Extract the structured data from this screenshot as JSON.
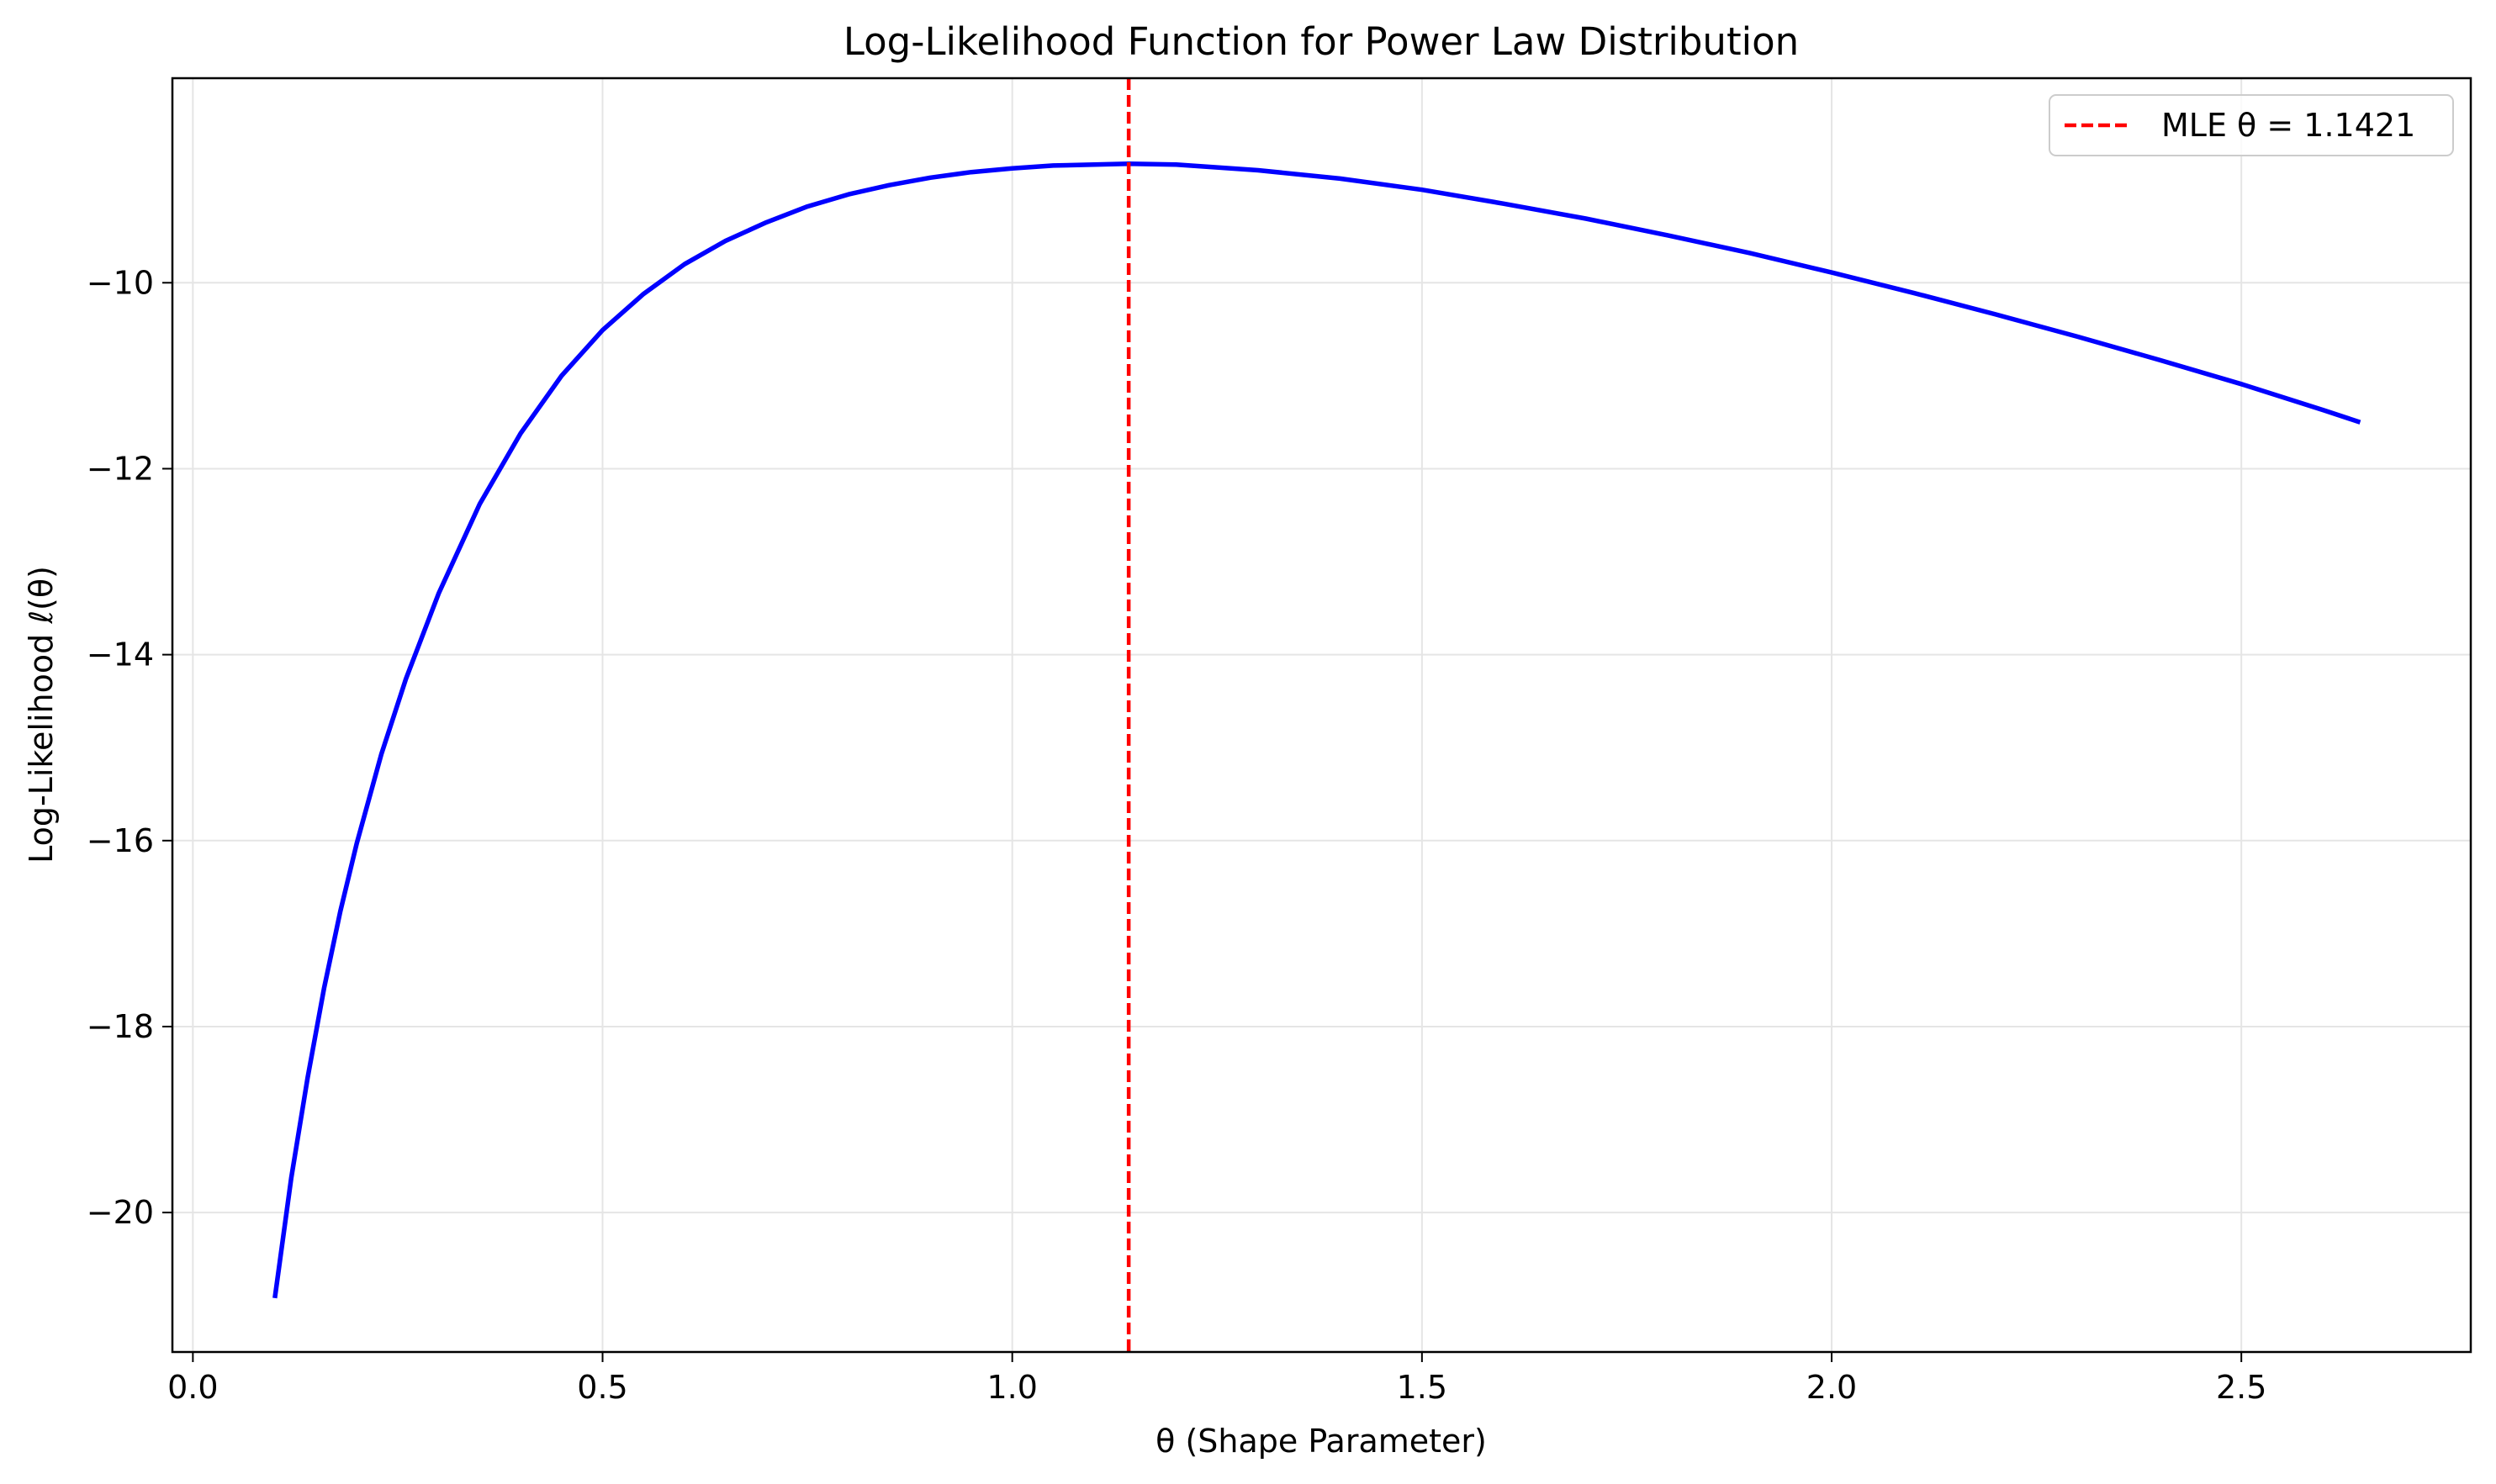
{
  "chart_data": {
    "type": "line",
    "title": "Log-Likelihood Function for Power Law Distribution",
    "xlabel": "θ (Shape Parameter)",
    "ylabel": "Log-Likelihood ℓ(θ)",
    "xlim": [
      -0.025,
      2.78
    ],
    "ylim": [
      -21.5,
      -7.8
    ],
    "xticks": [
      0.0,
      0.5,
      1.0,
      1.5,
      2.0,
      2.5
    ],
    "xtick_labels": [
      "0.0",
      "0.5",
      "1.0",
      "1.5",
      "2.0",
      "2.5"
    ],
    "yticks": [
      -20,
      -18,
      -16,
      -14,
      -12,
      -10
    ],
    "ytick_labels": [
      "−20",
      "−18",
      "−16",
      "−14",
      "−12",
      "−10"
    ],
    "grid": true,
    "legend_position": "top-right",
    "series": [
      {
        "name": "",
        "color": "#0000ff",
        "style": "solid",
        "x": [
          0.1,
          0.12,
          0.14,
          0.16,
          0.18,
          0.2,
          0.23,
          0.26,
          0.3,
          0.35,
          0.4,
          0.45,
          0.5,
          0.55,
          0.6,
          0.65,
          0.7,
          0.75,
          0.8,
          0.85,
          0.9,
          0.95,
          1.0,
          1.05,
          1.1,
          1.1421,
          1.2,
          1.3,
          1.4,
          1.5,
          1.6,
          1.7,
          1.8,
          1.9,
          2.0,
          2.1,
          2.2,
          2.3,
          2.4,
          2.5,
          2.6,
          2.645
        ],
        "y": [
          -20.92,
          -19.63,
          -18.55,
          -17.59,
          -16.76,
          -16.03,
          -15.07,
          -14.26,
          -13.34,
          -12.38,
          -11.62,
          -11.0,
          -10.51,
          -10.12,
          -9.8,
          -9.55,
          -9.35,
          -9.18,
          -9.05,
          -8.95,
          -8.87,
          -8.81,
          -8.77,
          -8.74,
          -8.73,
          -8.72,
          -8.73,
          -8.79,
          -8.88,
          -9.0,
          -9.15,
          -9.31,
          -9.49,
          -9.68,
          -9.89,
          -10.11,
          -10.34,
          -10.58,
          -10.83,
          -11.09,
          -11.37,
          -11.5
        ]
      }
    ],
    "vlines": [
      {
        "name": "MLE θ = 1.1421",
        "x": 1.1421,
        "color": "#ff0000",
        "style": "dashed"
      }
    ]
  }
}
